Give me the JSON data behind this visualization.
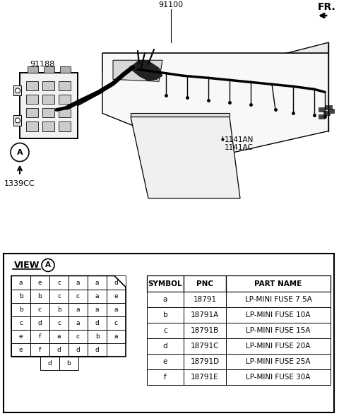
{
  "bg_color": "#ffffff",
  "diagram_label_91100": "91100",
  "diagram_label_fr": "FR.",
  "diagram_label_91188": "91188",
  "diagram_label_1339cc": "1339CC",
  "diagram_label_1141an": "1141AN",
  "diagram_label_1141ac": "1141AC",
  "circle_A_label": "A",
  "view_label": "VIEW",
  "fuse_grid": [
    [
      "a",
      "e",
      "c",
      "a",
      "a",
      "d"
    ],
    [
      "b",
      "b",
      "c",
      "c",
      "a",
      "e"
    ],
    [
      "b",
      "c",
      "b",
      "a",
      "a",
      "a"
    ],
    [
      "c",
      "d",
      "c",
      "a",
      "d",
      "c"
    ],
    [
      "e",
      "f",
      "a",
      "c",
      "b",
      "a"
    ],
    [
      "e",
      "f",
      "d",
      "d",
      "d",
      ""
    ]
  ],
  "fuse_bottom": [
    "d",
    "b"
  ],
  "table_headers": [
    "SYMBOL",
    "PNC",
    "PART NAME"
  ],
  "table_rows": [
    [
      "a",
      "18791",
      "LP-MINI FUSE 7.5A"
    ],
    [
      "b",
      "18791A",
      "LP-MINI FUSE 10A"
    ],
    [
      "c",
      "18791B",
      "LP-MINI FUSE 15A"
    ],
    [
      "d",
      "18791C",
      "LP-MINI FUSE 20A"
    ],
    [
      "e",
      "18791D",
      "LP-MINI FUSE 25A"
    ],
    [
      "f",
      "18791E",
      "LP-MINI FUSE 30A"
    ]
  ]
}
